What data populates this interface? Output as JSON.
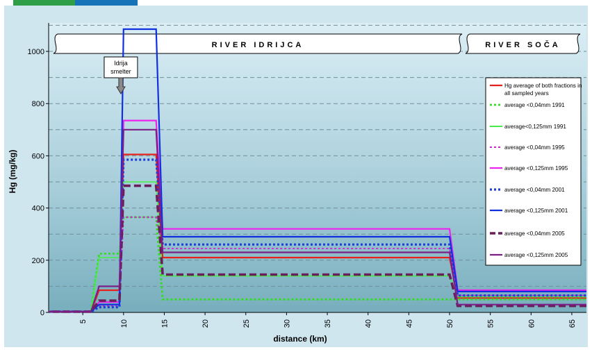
{
  "chart_data": {
    "type": "line",
    "title": "",
    "xlabel": "distance (km)",
    "ylabel": "Hg (mg/kg)",
    "xlim": [
      0,
      68
    ],
    "ylim": [
      0,
      1100
    ],
    "xticks": [
      5,
      10,
      15,
      20,
      25,
      30,
      35,
      40,
      45,
      50,
      55,
      60,
      65
    ],
    "yticks": [
      0,
      200,
      400,
      600,
      800,
      1000
    ],
    "grid": "horizontal dashed",
    "legend_position": "right",
    "banners": [
      "RIVER IDRIJCA",
      "RIVER SOČA"
    ],
    "annotation": {
      "text_lines": [
        "Idrija",
        "smelter"
      ],
      "x": 9.5,
      "arrow": "down"
    },
    "series": [
      {
        "name": "Hg average of both fractions in all sampled years",
        "color": "#e8201c",
        "dash": "solid",
        "width": 2.2,
        "points": [
          [
            0,
            3
          ],
          [
            6,
            3
          ],
          [
            7,
            85
          ],
          [
            9.5,
            85
          ],
          [
            10,
            605
          ],
          [
            14,
            605
          ],
          [
            14.8,
            210
          ],
          [
            50,
            210
          ],
          [
            51,
            55
          ],
          [
            67,
            55
          ]
        ]
      },
      {
        "name": "average <0,04mm 1991",
        "color": "#33dd22",
        "dash": "dotted",
        "width": 2.8,
        "points": [
          [
            0,
            3
          ],
          [
            6,
            3
          ],
          [
            7,
            225
          ],
          [
            8.5,
            225
          ],
          [
            9.5,
            225
          ],
          [
            10,
            365
          ],
          [
            14,
            365
          ],
          [
            14.8,
            50
          ],
          [
            50,
            50
          ],
          [
            51,
            50
          ],
          [
            67,
            50
          ]
        ]
      },
      {
        "name": "average<0,125mm 1991",
        "color": "#44ee44",
        "dash": "solid",
        "width": 1.6,
        "points": [
          [
            0,
            3
          ],
          [
            6,
            3
          ],
          [
            7,
            210
          ],
          [
            9.5,
            210
          ],
          [
            10,
            500
          ],
          [
            14,
            500
          ],
          [
            14.8,
            140
          ],
          [
            50,
            140
          ],
          [
            51,
            60
          ],
          [
            67,
            60
          ]
        ]
      },
      {
        "name": "average <0,04mm 1995",
        "color": "#cc22cc",
        "dash": "dotted",
        "width": 1.8,
        "points": [
          [
            0,
            3
          ],
          [
            6,
            3
          ],
          [
            7,
            25
          ],
          [
            9.5,
            25
          ],
          [
            10,
            365
          ],
          [
            14,
            365
          ],
          [
            14.8,
            245
          ],
          [
            50,
            245
          ],
          [
            51,
            65
          ],
          [
            67,
            65
          ]
        ]
      },
      {
        "name": "average <0,125mm 1995",
        "color": "#ee22ee",
        "dash": "solid",
        "width": 2.2,
        "points": [
          [
            0,
            3
          ],
          [
            6,
            3
          ],
          [
            7,
            40
          ],
          [
            9.5,
            40
          ],
          [
            10,
            735
          ],
          [
            14,
            735
          ],
          [
            14.8,
            320
          ],
          [
            50,
            320
          ],
          [
            51,
            85
          ],
          [
            67,
            85
          ]
        ]
      },
      {
        "name": "average <0,04mm 2001",
        "color": "#1f3fd9",
        "dash": "dotted",
        "width": 3.2,
        "points": [
          [
            0,
            3
          ],
          [
            6,
            3
          ],
          [
            7,
            20
          ],
          [
            9.5,
            20
          ],
          [
            10,
            585
          ],
          [
            14,
            585
          ],
          [
            14.8,
            260
          ],
          [
            50,
            260
          ],
          [
            51,
            65
          ],
          [
            67,
            65
          ]
        ]
      },
      {
        "name": "average <0,125mm 2001",
        "color": "#1030e0",
        "dash": "solid",
        "width": 2.2,
        "points": [
          [
            0,
            3
          ],
          [
            6,
            3
          ],
          [
            7,
            30
          ],
          [
            9.5,
            30
          ],
          [
            10,
            1085
          ],
          [
            14,
            1085
          ],
          [
            14.8,
            290
          ],
          [
            50,
            290
          ],
          [
            51,
            80
          ],
          [
            67,
            80
          ]
        ]
      },
      {
        "name": "average <0,04mm 2005",
        "color": "#6a1f5a",
        "dash": "dashed",
        "width": 3.6,
        "points": [
          [
            0,
            3
          ],
          [
            6,
            3
          ],
          [
            7,
            45
          ],
          [
            9.5,
            45
          ],
          [
            10,
            485
          ],
          [
            14,
            485
          ],
          [
            14.8,
            145
          ],
          [
            50,
            145
          ],
          [
            51,
            25
          ],
          [
            67,
            25
          ]
        ]
      },
      {
        "name": "average <0,125mm 2005",
        "color": "#7a1f86",
        "dash": "solid",
        "width": 2.2,
        "points": [
          [
            0,
            3
          ],
          [
            6,
            3
          ],
          [
            7,
            100
          ],
          [
            9.5,
            100
          ],
          [
            10,
            700
          ],
          [
            14,
            700
          ],
          [
            14.8,
            230
          ],
          [
            50,
            230
          ],
          [
            51,
            30
          ],
          [
            67,
            30
          ]
        ]
      }
    ]
  },
  "header": {
    "brand_green": "#2e9e47",
    "brand_blue": "#1673b8"
  }
}
